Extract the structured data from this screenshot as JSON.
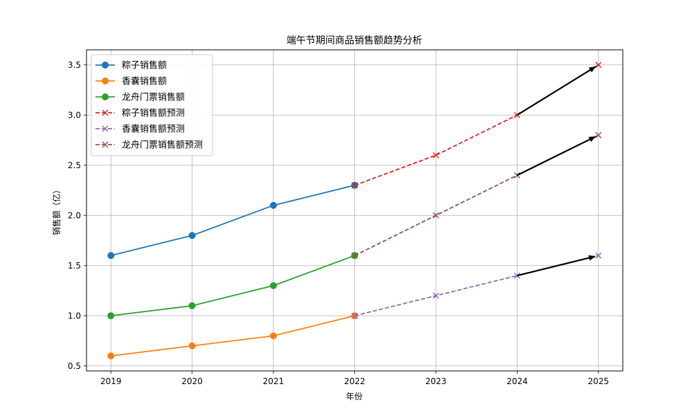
{
  "chart_data": {
    "type": "line",
    "title": "端午节期间商品销售额趋势分析",
    "xlabel": "年份",
    "ylabel": "销售额（亿）",
    "x_ticks": [
      "2019",
      "2020",
      "2021",
      "2022",
      "2023",
      "2024",
      "2025"
    ],
    "y_ticks": [
      "0.5",
      "1.0",
      "1.5",
      "2.0",
      "2.5",
      "3.0",
      "3.5"
    ],
    "xlim": [
      2018.7,
      2025.3
    ],
    "ylim": [
      0.45,
      3.65
    ],
    "grid": true,
    "legend_position": "upper-left",
    "series": [
      {
        "name": "粽子销售额",
        "color": "#1f77b4",
        "style": "solid",
        "marker": "circle",
        "x": [
          2019,
          2020,
          2021,
          2022
        ],
        "y": [
          1.6,
          1.8,
          2.1,
          2.3
        ]
      },
      {
        "name": "香囊销售额",
        "color": "#ff7f0e",
        "style": "solid",
        "marker": "circle",
        "x": [
          2019,
          2020,
          2021,
          2022
        ],
        "y": [
          0.6,
          0.7,
          0.8,
          1.0
        ]
      },
      {
        "name": "龙舟门票销售额",
        "color": "#2ca02c",
        "style": "solid",
        "marker": "circle",
        "x": [
          2019,
          2020,
          2021,
          2022
        ],
        "y": [
          1.0,
          1.1,
          1.3,
          1.6
        ]
      },
      {
        "name": "粽子销售额预测",
        "color": "#d62728",
        "style": "dashed",
        "marker": "x",
        "x": [
          2022,
          2023,
          2024,
          2025
        ],
        "y": [
          2.3,
          2.6,
          3.0,
          3.5
        ]
      },
      {
        "name": "香囊销售额预测",
        "color": "#9467bd",
        "style": "dashed",
        "marker": "x",
        "x": [
          2022,
          2023,
          2024,
          2025
        ],
        "y": [
          1.0,
          1.2,
          1.4,
          1.6
        ]
      },
      {
        "name": "龙舟门票销售额预测",
        "color": "#8c564b",
        "style": "dashed",
        "marker": "x",
        "x": [
          2022,
          2023,
          2024,
          2025
        ],
        "y": [
          1.6,
          2.0,
          2.4,
          2.8
        ]
      }
    ],
    "annotations": [
      {
        "type": "arrow",
        "from": [
          2024,
          3.0
        ],
        "to": [
          2025,
          3.5
        ],
        "color": "#000000"
      },
      {
        "type": "arrow",
        "from": [
          2024,
          2.4
        ],
        "to": [
          2025,
          2.8
        ],
        "color": "#000000"
      },
      {
        "type": "arrow",
        "from": [
          2024,
          1.4
        ],
        "to": [
          2025,
          1.6
        ],
        "color": "#000000"
      }
    ]
  }
}
